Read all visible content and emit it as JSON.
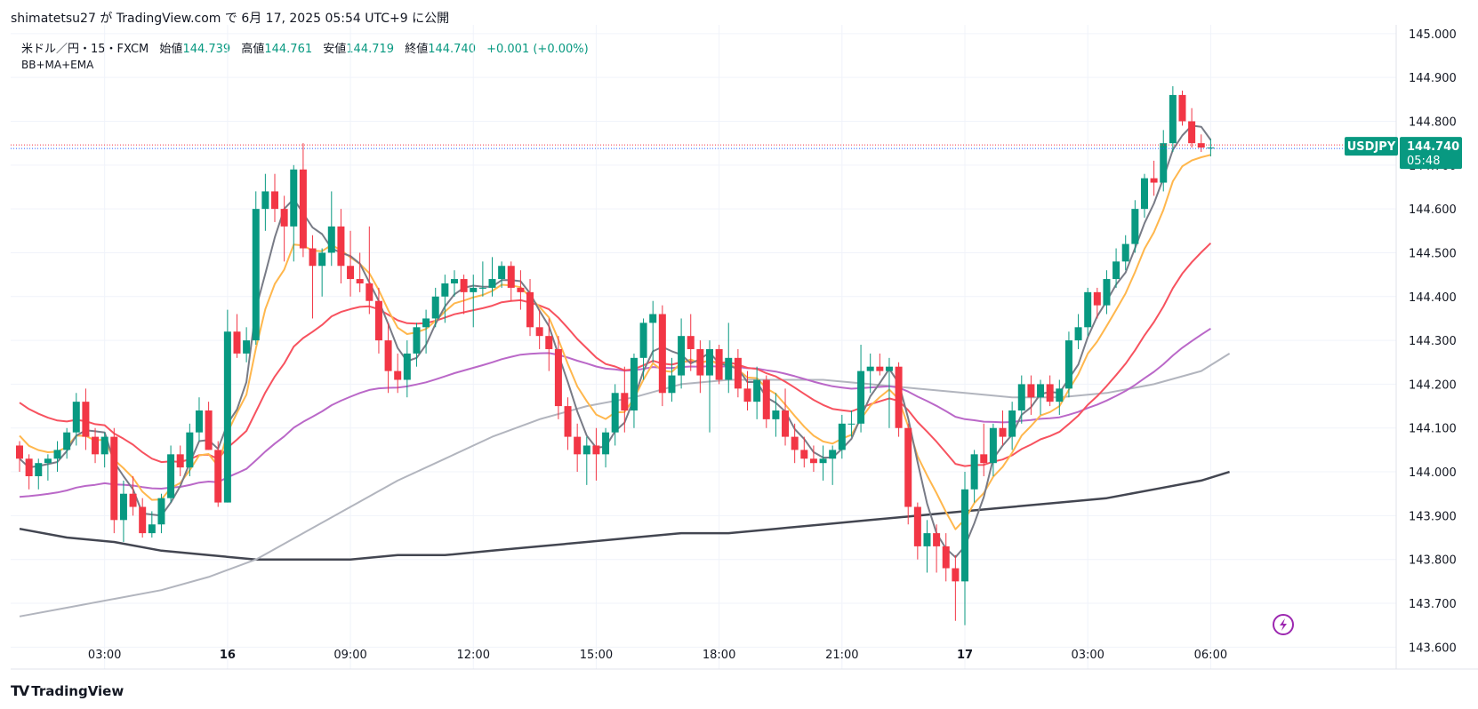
{
  "header": {
    "author": "shimatetsu27",
    "text_ga": "が",
    "platform": "TradingView.com",
    "text_de": "で",
    "datetime": "6月 17, 2025 05:54 UTC+9",
    "text_published": "に公開"
  },
  "legend": {
    "symbol": "米ドル／円・15・FXCM",
    "open_label": "始値",
    "open": "144.739",
    "high_label": "高値",
    "high": "144.761",
    "low_label": "安値",
    "low": "144.719",
    "close_label": "終値",
    "close": "144.740",
    "change": "+0.001 (+0.00%)",
    "indicator": "BB+MA+EMA"
  },
  "price_tag": {
    "label": "USDJPY",
    "price": "144.740",
    "countdown": "05:48"
  },
  "footer": {
    "logo": "TV",
    "brand": "TradingView"
  },
  "colors": {
    "up": "#089981",
    "down": "#f23645",
    "ma_fast": "#787b86",
    "ema_orange": "#ffb74d",
    "ema_red": "#f7525f",
    "ma_purple": "#ba68c8",
    "ma_lightgray": "#b2b5be",
    "ma_dark": "#434651"
  },
  "chart_data": {
    "type": "candlestick",
    "ylim": [
      143.55,
      145.02
    ],
    "y_ticks": [
      143.6,
      143.7,
      143.8,
      143.9,
      144.0,
      144.1,
      144.2,
      144.3,
      144.4,
      144.5,
      144.6,
      144.7,
      144.8,
      144.9,
      145.0
    ],
    "y_tick_labels": [
      "143.600",
      "143.700",
      "143.800",
      "143.900",
      "144.000",
      "144.100",
      "144.200",
      "144.300",
      "144.400",
      "144.500",
      "144.600",
      "144.700",
      "144.800",
      "144.900",
      "145.000"
    ],
    "x_tick_labels": [
      "03:00",
      "16",
      "09:00",
      "12:00",
      "15:00",
      "18:00",
      "21:00",
      "17",
      "03:00",
      "06:00"
    ],
    "x_tick_bold": [
      false,
      true,
      false,
      false,
      false,
      false,
      false,
      true,
      false,
      false
    ],
    "last_price": 144.74,
    "candles": [
      [
        144.06,
        144.07,
        144.0,
        144.03
      ],
      [
        144.03,
        144.04,
        143.96,
        143.99
      ],
      [
        143.99,
        144.03,
        143.96,
        144.02
      ],
      [
        144.02,
        144.04,
        143.98,
        144.03
      ],
      [
        144.03,
        144.07,
        144.0,
        144.05
      ],
      [
        144.05,
        144.1,
        144.03,
        144.09
      ],
      [
        144.09,
        144.18,
        144.06,
        144.16
      ],
      [
        144.16,
        144.19,
        144.05,
        144.08
      ],
      [
        144.08,
        144.1,
        144.02,
        144.04
      ],
      [
        144.04,
        144.09,
        144.01,
        144.08
      ],
      [
        144.08,
        144.1,
        143.86,
        143.89
      ],
      [
        143.89,
        143.98,
        143.84,
        143.95
      ],
      [
        143.95,
        143.99,
        143.9,
        143.92
      ],
      [
        143.92,
        143.94,
        143.85,
        143.86
      ],
      [
        143.86,
        143.91,
        143.85,
        143.88
      ],
      [
        143.88,
        143.95,
        143.86,
        143.94
      ],
      [
        143.94,
        144.06,
        143.93,
        144.04
      ],
      [
        144.04,
        144.06,
        143.99,
        144.01
      ],
      [
        144.01,
        144.11,
        143.99,
        144.09
      ],
      [
        144.09,
        144.17,
        144.07,
        144.14
      ],
      [
        144.14,
        144.16,
        144.05,
        144.05
      ],
      [
        144.05,
        144.07,
        143.92,
        143.93
      ],
      [
        143.93,
        144.37,
        143.93,
        144.32
      ],
      [
        144.32,
        144.36,
        144.26,
        144.27
      ],
      [
        144.27,
        144.33,
        144.25,
        144.3
      ],
      [
        144.3,
        144.64,
        144.29,
        144.6
      ],
      [
        144.6,
        144.68,
        144.55,
        144.64
      ],
      [
        144.64,
        144.68,
        144.57,
        144.6
      ],
      [
        144.6,
        144.63,
        144.48,
        144.56
      ],
      [
        144.56,
        144.7,
        144.48,
        144.69
      ],
      [
        144.69,
        144.75,
        144.49,
        144.51
      ],
      [
        144.51,
        144.54,
        144.35,
        144.47
      ],
      [
        144.47,
        144.51,
        144.4,
        144.5
      ],
      [
        144.5,
        144.64,
        144.47,
        144.56
      ],
      [
        144.56,
        144.6,
        144.43,
        144.47
      ],
      [
        144.47,
        144.55,
        144.4,
        144.44
      ],
      [
        144.44,
        144.5,
        144.41,
        144.43
      ],
      [
        144.43,
        144.56,
        144.36,
        144.39
      ],
      [
        144.39,
        144.42,
        144.27,
        144.3
      ],
      [
        144.3,
        144.34,
        144.18,
        144.23
      ],
      [
        144.23,
        144.27,
        144.18,
        144.21
      ],
      [
        144.21,
        144.3,
        144.17,
        144.27
      ],
      [
        144.27,
        144.34,
        144.24,
        144.33
      ],
      [
        144.33,
        144.37,
        144.27,
        144.35
      ],
      [
        144.35,
        144.42,
        144.33,
        144.4
      ],
      [
        144.4,
        144.45,
        144.34,
        144.43
      ],
      [
        144.43,
        144.46,
        144.4,
        144.44
      ],
      [
        144.44,
        144.45,
        144.36,
        144.41
      ],
      [
        144.41,
        144.45,
        144.33,
        144.42
      ],
      [
        144.42,
        144.48,
        144.4,
        144.42
      ],
      [
        144.42,
        144.49,
        144.4,
        144.44
      ],
      [
        144.44,
        144.48,
        144.42,
        144.47
      ],
      [
        144.47,
        144.48,
        144.39,
        144.42
      ],
      [
        144.42,
        144.46,
        144.37,
        144.41
      ],
      [
        144.41,
        144.44,
        144.31,
        144.33
      ],
      [
        144.33,
        144.37,
        144.28,
        144.31
      ],
      [
        144.31,
        144.35,
        144.23,
        144.28
      ],
      [
        144.28,
        144.31,
        144.12,
        144.15
      ],
      [
        144.15,
        144.17,
        144.05,
        144.08
      ],
      [
        144.08,
        144.11,
        144.0,
        144.04
      ],
      [
        144.04,
        144.08,
        143.97,
        144.06
      ],
      [
        144.06,
        144.1,
        143.98,
        144.04
      ],
      [
        144.04,
        144.1,
        144.01,
        144.09
      ],
      [
        144.09,
        144.2,
        144.06,
        144.18
      ],
      [
        144.18,
        144.24,
        144.09,
        144.14
      ],
      [
        144.14,
        144.27,
        144.1,
        144.26
      ],
      [
        144.26,
        144.35,
        144.21,
        144.34
      ],
      [
        144.34,
        144.39,
        144.25,
        144.36
      ],
      [
        144.36,
        144.38,
        144.15,
        144.18
      ],
      [
        144.18,
        144.26,
        144.16,
        144.22
      ],
      [
        144.22,
        144.35,
        144.19,
        144.31
      ],
      [
        144.31,
        144.36,
        144.23,
        144.28
      ],
      [
        144.28,
        144.3,
        144.18,
        144.22
      ],
      [
        144.22,
        144.3,
        144.09,
        144.28
      ],
      [
        144.28,
        144.29,
        144.2,
        144.21
      ],
      [
        144.21,
        144.34,
        144.18,
        144.26
      ],
      [
        144.26,
        144.28,
        144.17,
        144.19
      ],
      [
        144.19,
        144.23,
        144.14,
        144.16
      ],
      [
        144.16,
        144.24,
        144.12,
        144.21
      ],
      [
        144.21,
        144.22,
        144.1,
        144.12
      ],
      [
        144.12,
        144.18,
        144.08,
        144.14
      ],
      [
        144.14,
        144.19,
        144.06,
        144.08
      ],
      [
        144.08,
        144.11,
        144.02,
        144.05
      ],
      [
        144.05,
        144.08,
        144.01,
        144.03
      ],
      [
        144.03,
        144.06,
        144.0,
        144.02
      ],
      [
        144.02,
        144.06,
        143.98,
        144.03
      ],
      [
        144.03,
        144.06,
        143.97,
        144.05
      ],
      [
        144.05,
        144.13,
        144.03,
        144.11
      ],
      [
        144.11,
        144.14,
        144.08,
        144.11
      ],
      [
        144.11,
        144.29,
        144.09,
        144.23
      ],
      [
        144.23,
        144.27,
        144.18,
        144.24
      ],
      [
        144.24,
        144.27,
        144.22,
        144.23
      ],
      [
        144.23,
        144.26,
        144.1,
        144.24
      ],
      [
        144.24,
        144.25,
        144.08,
        144.1
      ],
      [
        144.1,
        144.11,
        143.88,
        143.92
      ],
      [
        143.92,
        143.93,
        143.8,
        143.83
      ],
      [
        143.83,
        143.89,
        143.77,
        143.86
      ],
      [
        143.86,
        143.88,
        143.77,
        143.83
      ],
      [
        143.83,
        143.86,
        143.75,
        143.78
      ],
      [
        143.78,
        143.81,
        143.66,
        143.75
      ],
      [
        143.75,
        144.0,
        143.65,
        143.96
      ],
      [
        143.96,
        144.05,
        143.93,
        144.04
      ],
      [
        144.04,
        144.11,
        143.99,
        144.02
      ],
      [
        144.02,
        144.11,
        143.99,
        144.1
      ],
      [
        144.1,
        144.14,
        144.06,
        144.08
      ],
      [
        144.08,
        144.16,
        144.05,
        144.14
      ],
      [
        144.14,
        144.22,
        144.11,
        144.2
      ],
      [
        144.2,
        144.22,
        144.13,
        144.17
      ],
      [
        144.17,
        144.21,
        144.13,
        144.2
      ],
      [
        144.2,
        144.22,
        144.15,
        144.16
      ],
      [
        144.16,
        144.21,
        144.13,
        144.19
      ],
      [
        144.19,
        144.32,
        144.17,
        144.3
      ],
      [
        144.3,
        144.36,
        144.28,
        144.33
      ],
      [
        144.33,
        144.42,
        144.31,
        144.41
      ],
      [
        144.41,
        144.42,
        144.35,
        144.38
      ],
      [
        144.38,
        144.46,
        144.36,
        144.44
      ],
      [
        144.44,
        144.51,
        144.42,
        144.48
      ],
      [
        144.48,
        144.54,
        144.46,
        144.52
      ],
      [
        144.52,
        144.62,
        144.5,
        144.6
      ],
      [
        144.6,
        144.68,
        144.58,
        144.67
      ],
      [
        144.67,
        144.71,
        144.63,
        144.66
      ],
      [
        144.66,
        144.78,
        144.64,
        144.75
      ],
      [
        144.75,
        144.88,
        144.73,
        144.86
      ],
      [
        144.86,
        144.87,
        144.79,
        144.8
      ],
      [
        144.8,
        144.83,
        144.74,
        144.75
      ],
      [
        144.75,
        144.77,
        144.73,
        144.74
      ],
      [
        144.74,
        144.76,
        144.72,
        144.74
      ]
    ],
    "ma_lightgray": [
      [
        0,
        143.67
      ],
      [
        5,
        143.69
      ],
      [
        10,
        143.71
      ],
      [
        15,
        143.73
      ],
      [
        20,
        143.76
      ],
      [
        25,
        143.8
      ],
      [
        30,
        143.86
      ],
      [
        35,
        143.92
      ],
      [
        40,
        143.98
      ],
      [
        45,
        144.03
      ],
      [
        50,
        144.08
      ],
      [
        55,
        144.12
      ],
      [
        60,
        144.15
      ],
      [
        65,
        144.17
      ],
      [
        70,
        144.2
      ],
      [
        75,
        144.21
      ],
      [
        80,
        144.21
      ],
      [
        85,
        144.21
      ],
      [
        90,
        144.2
      ],
      [
        95,
        144.19
      ],
      [
        100,
        144.18
      ],
      [
        105,
        144.17
      ],
      [
        110,
        144.17
      ],
      [
        115,
        144.18
      ],
      [
        120,
        144.2
      ],
      [
        125,
        144.23
      ],
      [
        128,
        144.27
      ]
    ],
    "ma_dark": [
      [
        0,
        143.87
      ],
      [
        5,
        143.85
      ],
      [
        10,
        143.84
      ],
      [
        15,
        143.82
      ],
      [
        20,
        143.81
      ],
      [
        25,
        143.8
      ],
      [
        30,
        143.8
      ],
      [
        35,
        143.8
      ],
      [
        40,
        143.81
      ],
      [
        45,
        143.81
      ],
      [
        50,
        143.82
      ],
      [
        55,
        143.83
      ],
      [
        60,
        143.84
      ],
      [
        65,
        143.85
      ],
      [
        70,
        143.86
      ],
      [
        75,
        143.86
      ],
      [
        80,
        143.87
      ],
      [
        85,
        143.88
      ],
      [
        90,
        143.89
      ],
      [
        95,
        143.9
      ],
      [
        100,
        143.91
      ],
      [
        105,
        143.92
      ],
      [
        110,
        143.93
      ],
      [
        115,
        143.94
      ],
      [
        120,
        143.96
      ],
      [
        125,
        143.98
      ],
      [
        128,
        144.0
      ]
    ]
  }
}
